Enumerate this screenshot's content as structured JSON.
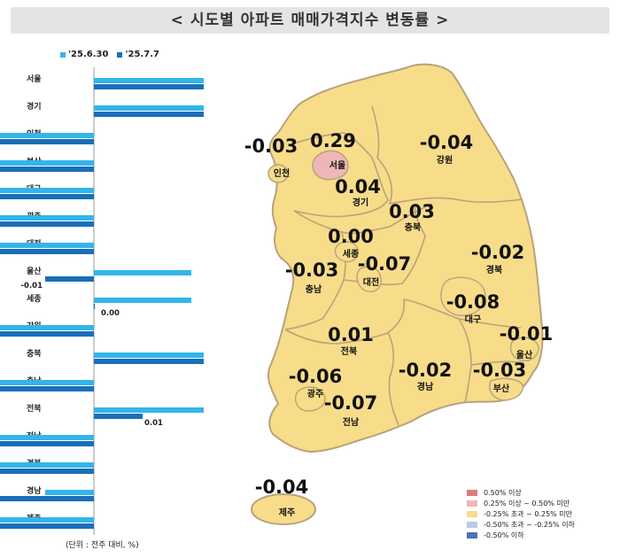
{
  "title": "< 시도별 아파트 매매가격지수 변동률 >",
  "chart_data": {
    "type": "bar",
    "orientation": "horizontal",
    "categories": [
      "서울",
      "경기",
      "인천",
      "부산",
      "대구",
      "광주",
      "대전",
      "울산",
      "세종",
      "강원",
      "충북",
      "충남",
      "전북",
      "전남",
      "경북",
      "경남",
      "제주"
    ],
    "series": [
      {
        "name": "'25.6.30",
        "color": "#33b5ea",
        "values": [
          0.34,
          0.05,
          -0.03,
          -0.02,
          -0.07,
          -0.06,
          -0.06,
          0.02,
          0.02,
          -0.03,
          0.03,
          -0.02,
          0.04,
          -0.08,
          -0.03,
          -0.01,
          -0.04
        ]
      },
      {
        "name": "'25.7.7",
        "color": "#1a6fb8",
        "values": [
          0.29,
          0.04,
          -0.03,
          -0.03,
          -0.08,
          -0.06,
          -0.07,
          -0.01,
          0.0,
          -0.04,
          0.03,
          -0.03,
          0.01,
          -0.07,
          -0.02,
          -0.02,
          -0.04
        ]
      }
    ],
    "value_labels": [
      "0.29",
      "0.04",
      "-0.03",
      "-0.03",
      "-0.08",
      "-0.06",
      "-0.07",
      "-0.01",
      "0.00",
      "-0.04",
      "0.03",
      "-0.03",
      "0.01",
      "-0.07",
      "-0.02",
      "-0.02",
      "-0.04"
    ],
    "legend_position": "top"
  },
  "unit_note": "(단위 : 전주 대비, %)",
  "map": {
    "regions": [
      {
        "name": "서울",
        "value": "0.29",
        "class": "0.25_to_0.50"
      },
      {
        "name": "인천",
        "value": "-0.03",
        "class": "neutral"
      },
      {
        "name": "경기",
        "value": "0.04",
        "class": "neutral"
      },
      {
        "name": "강원",
        "value": "-0.04",
        "class": "neutral"
      },
      {
        "name": "충북",
        "value": "0.03",
        "class": "neutral"
      },
      {
        "name": "세종",
        "value": "0.00",
        "class": "neutral"
      },
      {
        "name": "대전",
        "value": "-0.07",
        "class": "neutral"
      },
      {
        "name": "충남",
        "value": "-0.03",
        "class": "neutral"
      },
      {
        "name": "경북",
        "value": "-0.02",
        "class": "neutral"
      },
      {
        "name": "대구",
        "value": "-0.08",
        "class": "neutral"
      },
      {
        "name": "울산",
        "value": "-0.01",
        "class": "neutral"
      },
      {
        "name": "전북",
        "value": "0.01",
        "class": "neutral"
      },
      {
        "name": "광주",
        "value": "-0.06",
        "class": "neutral"
      },
      {
        "name": "전남",
        "value": "-0.07",
        "class": "neutral"
      },
      {
        "name": "경남",
        "value": "-0.02",
        "class": "neutral"
      },
      {
        "name": "부산",
        "value": "-0.03",
        "class": "neutral"
      },
      {
        "name": "제주",
        "value": "-0.04",
        "class": "neutral"
      }
    ],
    "legend": [
      {
        "label": "0.50% 이상",
        "color": "#e07a80"
      },
      {
        "label": "0.25% 이상 ~ 0.50% 미만",
        "color": "#efb6b8"
      },
      {
        "label": "-0.25% 초과 ~ 0.25% 미만",
        "color": "#f7dc8a"
      },
      {
        "label": "-0.50% 초과 ~ -0.25% 이하",
        "color": "#b9cbe6"
      },
      {
        "label": "-0.50% 이하",
        "color": "#4a73b8"
      }
    ],
    "colors": {
      "land": "#f7dc8a",
      "seoul": "#efb6b8",
      "border": "#b9a27a"
    }
  }
}
